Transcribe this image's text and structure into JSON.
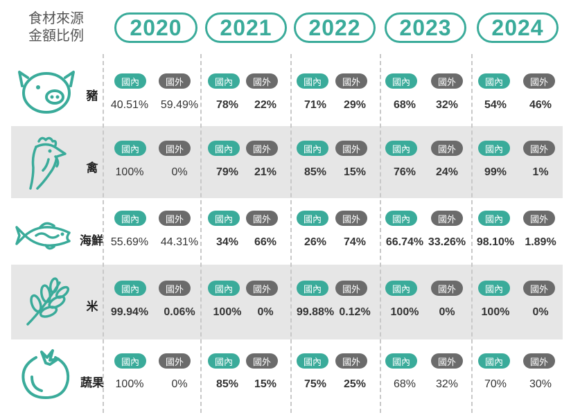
{
  "title": [
    "食材來源",
    "金額比例"
  ],
  "years": [
    "2020",
    "2021",
    "2022",
    "2023",
    "2024"
  ],
  "labels": {
    "domestic": "國內",
    "imported": "國外"
  },
  "colors": {
    "accent": "#3aab9a",
    "imported": "#6b6b6b",
    "band": "#e6e6e6"
  },
  "rows": [
    {
      "icon": "pig-icon",
      "name": "豬",
      "values": [
        [
          "40.51%",
          "59.49%"
        ],
        [
          "78%",
          "22%"
        ],
        [
          "71%",
          "29%"
        ],
        [
          "68%",
          "32%"
        ],
        [
          "54%",
          "46%"
        ]
      ]
    },
    {
      "icon": "chicken-icon",
      "name": "禽",
      "values": [
        [
          "100%",
          "0%"
        ],
        [
          "79%",
          "21%"
        ],
        [
          "85%",
          "15%"
        ],
        [
          "76%",
          "24%"
        ],
        [
          "99%",
          "1%"
        ]
      ]
    },
    {
      "icon": "fish-icon",
      "name": "海鮮",
      "values": [
        [
          "55.69%",
          "44.31%"
        ],
        [
          "34%",
          "66%"
        ],
        [
          "26%",
          "74%"
        ],
        [
          "66.74%",
          "33.26%"
        ],
        [
          "98.10%",
          "1.89%"
        ]
      ]
    },
    {
      "icon": "rice-icon",
      "name": "米",
      "values": [
        [
          "99.94%",
          "0.06%"
        ],
        [
          "100%",
          "0%"
        ],
        [
          "99.88%",
          "0.12%"
        ],
        [
          "100%",
          "0%"
        ],
        [
          "100%",
          "0%"
        ]
      ]
    },
    {
      "icon": "tomato-icon",
      "name": "蔬果",
      "values": [
        [
          "100%",
          "0%"
        ],
        [
          "85%",
          "15%"
        ],
        [
          "75%",
          "25%"
        ],
        [
          "68%",
          "32%"
        ],
        [
          "70%",
          "30%"
        ]
      ]
    }
  ]
}
